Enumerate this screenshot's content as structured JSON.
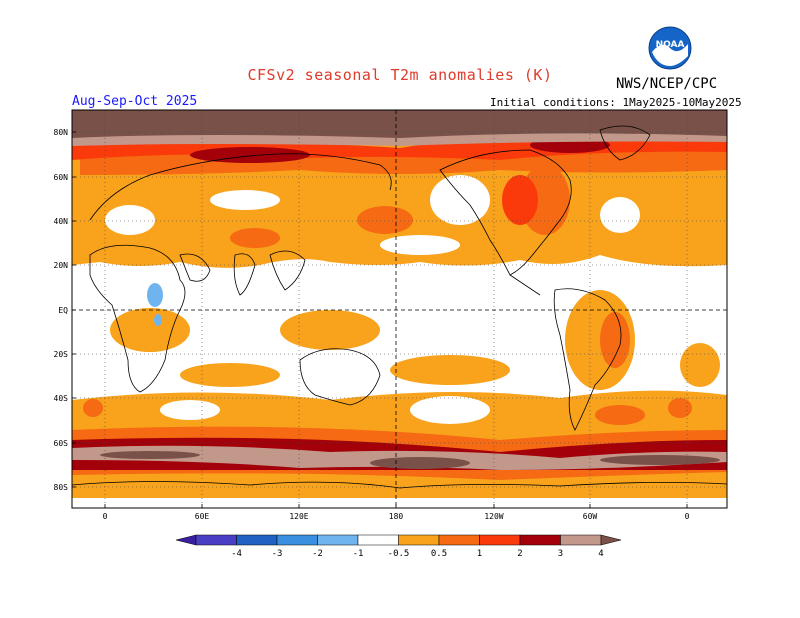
{
  "title": "CFSv2 seasonal T2m anomalies (K)",
  "organization": "NWS/NCEP/CPC",
  "season": "Aug-Sep-Oct 2025",
  "initial_conditions": "Initial conditions: 1May2025-10May2025",
  "logo": {
    "icon": "noaa-logo-icon",
    "text": "NOAA"
  },
  "lat_labels": [
    "80N",
    "60N",
    "40N",
    "20N",
    "EQ",
    "20S",
    "40S",
    "60S",
    "80S"
  ],
  "lon_labels": [
    "0",
    "60E",
    "120E",
    "180",
    "120W",
    "60W",
    "0"
  ],
  "colorbar": {
    "ticks": [
      "-4",
      "-3",
      "-2",
      "-1",
      "-0.5",
      "0.5",
      "1",
      "2",
      "3",
      "4"
    ],
    "colors": [
      "#3a1f9e",
      "#4a3fc4",
      "#1f62c4",
      "#3a8fe0",
      "#6fb4ef",
      "#ffffff",
      "#f9a21b",
      "#f56a12",
      "#fa3a0a",
      "#a3000a",
      "#c2988a",
      "#7a5148"
    ]
  },
  "anomaly_colors": {
    "0.5_to_1": "#f9a21b",
    "1_to_2": "#f56a12",
    "2_to_3": "#fa3a0a",
    "3_to_4": "#a3000a",
    "4_plus": "#c2988a",
    "extreme": "#7a5148",
    "neg_0.5_to_1": "#6fb4ef"
  }
}
